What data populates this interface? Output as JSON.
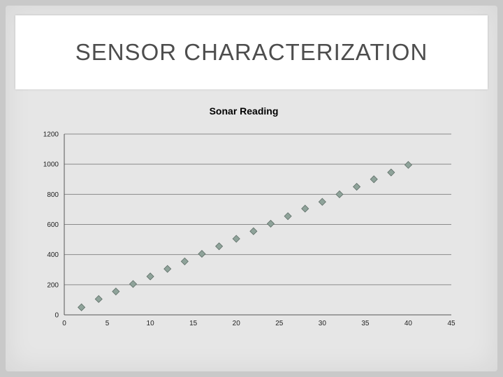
{
  "slide": {
    "title": "SENSOR CHARACTERIZATION"
  },
  "chart_data": {
    "type": "scatter",
    "title": "Sonar Reading",
    "xlabel": "",
    "ylabel": "",
    "xlim": [
      0,
      45
    ],
    "ylim": [
      0,
      1200
    ],
    "xticks": [
      0,
      5,
      10,
      15,
      20,
      25,
      30,
      35,
      40,
      45
    ],
    "yticks": [
      0,
      200,
      400,
      600,
      800,
      1000,
      1200
    ],
    "grid": "horizontal",
    "legend": "none",
    "marker": "diamond",
    "marker_color": "#8fa39a",
    "series": [
      {
        "x": [
          2,
          4,
          6,
          8,
          10,
          12,
          14,
          16,
          18,
          20,
          22,
          24,
          26,
          28,
          30,
          32,
          34,
          36,
          38,
          40
        ],
        "y": [
          50,
          105,
          155,
          205,
          255,
          305,
          355,
          405,
          455,
          505,
          555,
          605,
          655,
          705,
          750,
          800,
          850,
          900,
          945,
          995
        ]
      }
    ]
  }
}
